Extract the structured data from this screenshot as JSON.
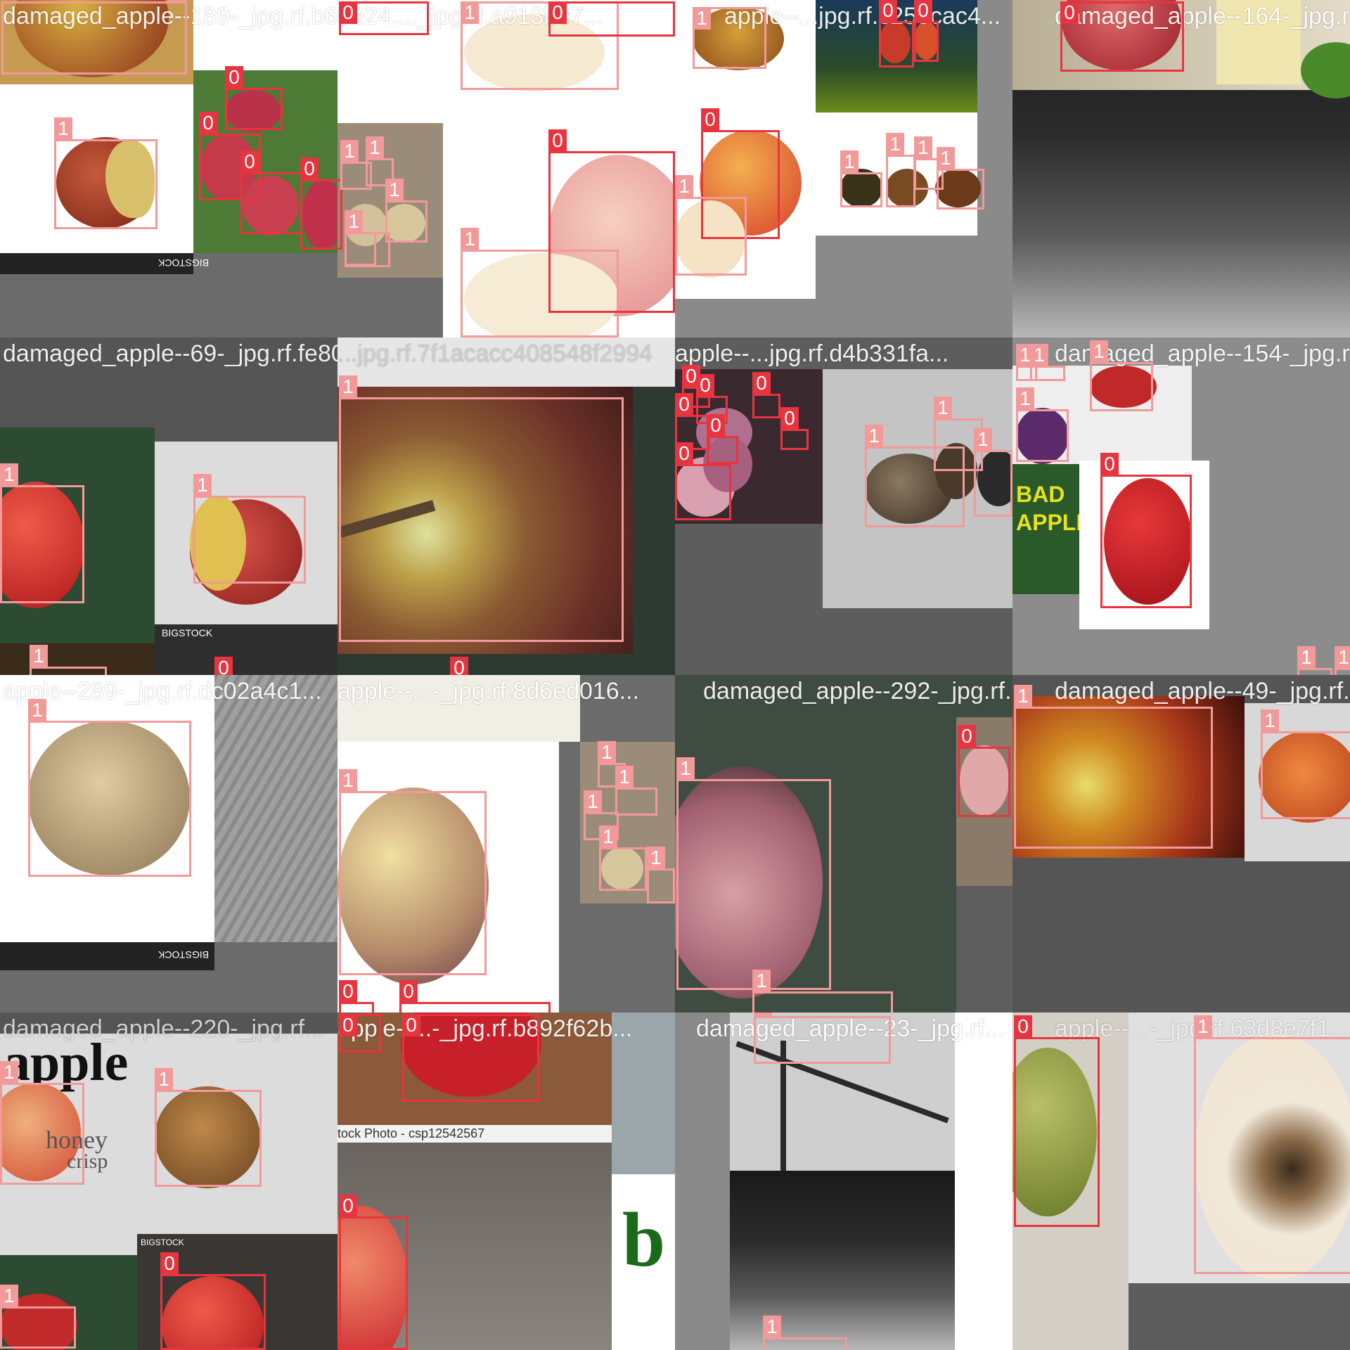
{
  "tiles": [
    {
      "filename": "damaged_apple--189-_jpg.rf.b6be24...._jpg.rf.a913be7...",
      "boxes": [
        {
          "label": "1"
        },
        {
          "label": "0"
        },
        {
          "label": "1"
        },
        {
          "label": "0"
        },
        {
          "label": "1"
        },
        {
          "label": "0"
        },
        {
          "label": "0"
        },
        {
          "label": "0"
        },
        {
          "label": "0"
        },
        {
          "label": "1"
        },
        {
          "label": "1"
        },
        {
          "label": "1"
        },
        {
          "label": "1"
        },
        {
          "label": "1"
        },
        {
          "label": "1"
        },
        {
          "label": "0"
        },
        {
          "label": "1"
        }
      ]
    },
    {
      "filename": "apple--...jpg.rf.c25ecac4...",
      "boxes": [
        {
          "label": "1"
        },
        {
          "label": "0"
        },
        {
          "label": "0"
        },
        {
          "label": "0"
        },
        {
          "label": "1"
        },
        {
          "label": "1"
        },
        {
          "label": "1"
        },
        {
          "label": "1"
        },
        {
          "label": "1"
        }
      ]
    },
    {
      "filename": "damaged_apple--164-_jpg.rf...",
      "boxes": [
        {
          "label": "0"
        }
      ]
    },
    {
      "filename": "damaged_apple--69-_jpg.rf.fe80064...",
      "boxes": [
        {
          "label": "1"
        },
        {
          "label": "1"
        },
        {
          "label": "1"
        },
        {
          "label": "0"
        }
      ]
    },
    {
      "filename": "...jpg.rf.7f1acacc408548f2994",
      "boxes": [
        {
          "label": "1"
        },
        {
          "label": "0"
        }
      ]
    },
    {
      "filename": "apple--...jpg.rf.d4b331fa...",
      "boxes": [
        {
          "label": "0"
        },
        {
          "label": "0"
        },
        {
          "label": "0"
        },
        {
          "label": "0"
        },
        {
          "label": "0"
        },
        {
          "label": "0"
        },
        {
          "label": "0"
        },
        {
          "label": "1"
        },
        {
          "label": "1"
        },
        {
          "label": "1"
        }
      ]
    },
    {
      "filename": "damaged_apple--154-_jpg.rf...",
      "boxes": [
        {
          "label": "1"
        },
        {
          "label": "1"
        },
        {
          "label": "1"
        },
        {
          "label": "1"
        },
        {
          "label": "0"
        },
        {
          "label": "1"
        },
        {
          "label": "1"
        }
      ]
    },
    {
      "filename": "apple--289-_jpg.rf.dc02a4c1...",
      "boxes": [
        {
          "label": "1"
        }
      ]
    },
    {
      "filename": "apple--...-_jpg.rf.8d6ed016...",
      "boxes": [
        {
          "label": "1"
        },
        {
          "label": "1"
        },
        {
          "label": "1"
        },
        {
          "label": "1"
        },
        {
          "label": "1"
        },
        {
          "label": "1"
        },
        {
          "label": "0"
        },
        {
          "label": "0"
        }
      ]
    },
    {
      "filename": "damaged_apple--292-_jpg.rf...",
      "boxes": [
        {
          "label": "1"
        },
        {
          "label": "0"
        },
        {
          "label": "1"
        }
      ]
    },
    {
      "filename": "damaged_apple--49-_jpg.rf...",
      "boxes": [
        {
          "label": "1"
        },
        {
          "label": "1"
        }
      ]
    },
    {
      "filename": "damaged_apple--220-_jpg.rf...",
      "boxes": [
        {
          "label": "1"
        },
        {
          "label": "1"
        },
        {
          "label": "1"
        },
        {
          "label": "0"
        }
      ]
    },
    {
      "filename": "apple--...-_jpg.rf.b892f62b...",
      "boxes": [
        {
          "label": "0"
        },
        {
          "label": "0"
        },
        {
          "label": "0"
        }
      ]
    },
    {
      "filename": "damaged_apple--23-_jpg.rf...",
      "boxes": [
        {
          "label": "1"
        },
        {
          "label": "1"
        }
      ]
    },
    {
      "filename": "apple--...-_jpg.rf.63d8e7f1...",
      "boxes": [
        {
          "label": "0"
        },
        {
          "label": "1"
        }
      ]
    }
  ],
  "embedded_text": {
    "bigstock": "BIGSTOCK",
    "bad_apple_1": "BAD",
    "bad_apple_2": "APPLE",
    "apple_word": "apple",
    "honey": "honey",
    "crisp": "crisp",
    "stock_photo": "tock Photo - csp12542567",
    "green_b": "b"
  }
}
